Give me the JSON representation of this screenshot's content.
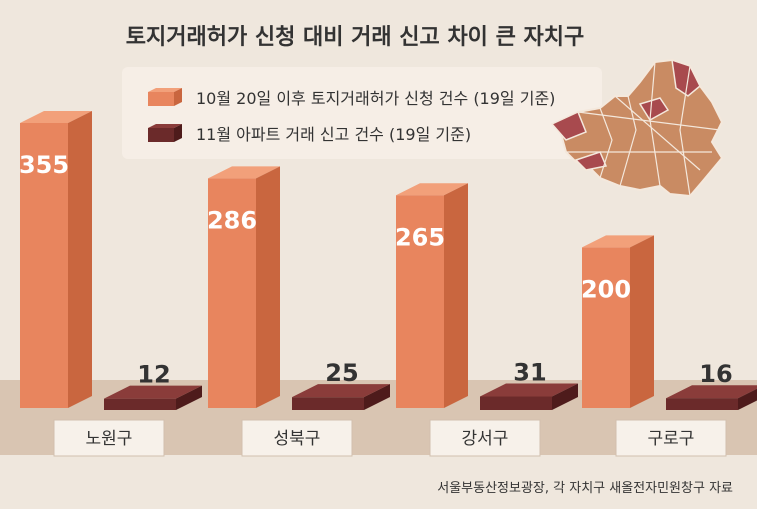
{
  "chart_data": {
    "type": "bar",
    "title": "토지거래허가 신청 대비 거래 신고 차이 큰 자치구",
    "categories": [
      "노원구",
      "성북구",
      "강서구",
      "구로구"
    ],
    "series": [
      {
        "name": "10월 20일 이후 토지거래허가 신청 건수 (19일 기준)",
        "values": [
          355,
          286,
          265,
          200
        ]
      },
      {
        "name": "11월 아파트 거래 신고 건수 (19일 기준)",
        "values": [
          12,
          25,
          31,
          16
        ]
      }
    ],
    "ylim": [
      0,
      355
    ],
    "grid": false,
    "legend_position": "top-left",
    "source": "서울부동산정보광장, 각 자치구 새올전자민원창구 자료"
  },
  "colors": {
    "background": "#efe7dd",
    "floor": "#d9c5b2",
    "legend_box": "#f6eee6",
    "series1_front": "#e8855e",
    "series1_side": "#c9663f",
    "series1_top": "#f2a07a",
    "series2_front": "#6b2a2a",
    "series2_side": "#4e1b1b",
    "series2_top": "#8a3c3a",
    "text": "#333333",
    "map_fill": "#c98b63",
    "map_highlight": "#a84a4e",
    "map_stroke": "#f4e8dc"
  },
  "icons": {
    "map": "seoul-district-map-icon"
  }
}
